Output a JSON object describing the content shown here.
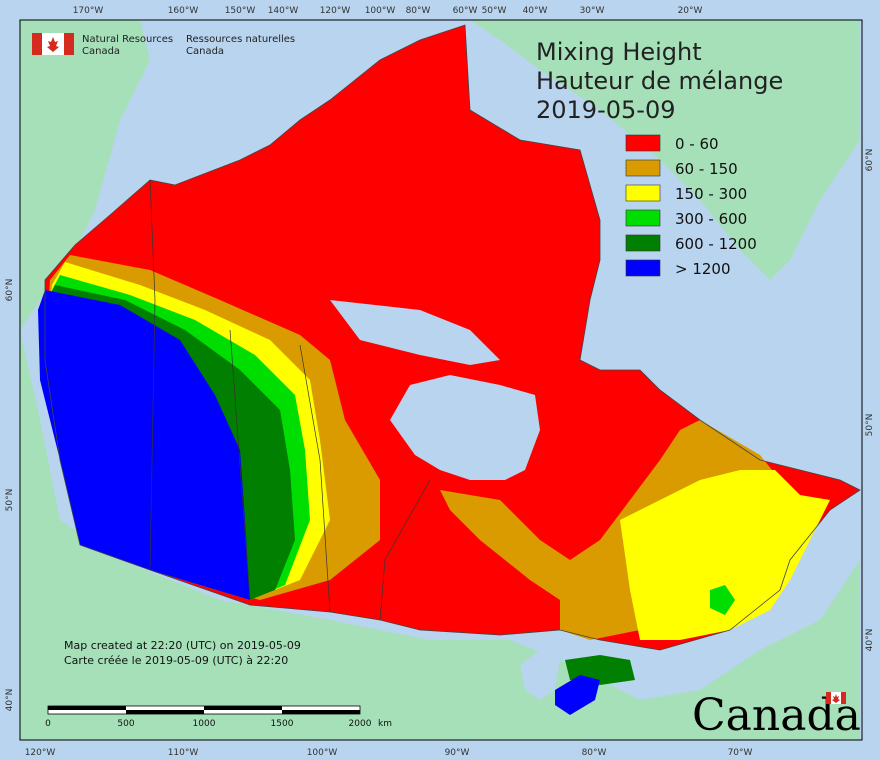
{
  "title": {
    "line1": "Mixing Height",
    "line2": "Hauteur de mélange",
    "date": "2019-05-09"
  },
  "agency": {
    "en_line1": "Natural Resources",
    "en_line2": "Canada",
    "fr_line1": "Ressources naturelles",
    "fr_line2": "Canada",
    "flag_color": "#d52b1e"
  },
  "legend": [
    {
      "label": "0 - 60",
      "color": "#ff0000"
    },
    {
      "label": "60 - 150",
      "color": "#d99b00"
    },
    {
      "label": "150 - 300",
      "color": "#ffff00"
    },
    {
      "label": "300 - 600",
      "color": "#00dd00"
    },
    {
      "label": "600 - 1200",
      "color": "#007f00"
    },
    {
      "label": "> 1200",
      "color": "#0000ff"
    }
  ],
  "created_note": {
    "en": "Map created at 22:20 (UTC) on 2019-05-09",
    "fr": "Carte créée le 2019-05-09 (UTC) à 22:20"
  },
  "scale_bar": {
    "ticks": [
      "0",
      "500",
      "1000",
      "1500",
      "2000"
    ],
    "unit": "km"
  },
  "wordmark": "Canada",
  "graticule": {
    "top": [
      "170°W",
      "160°W",
      "150°W",
      "140°W",
      "120°W",
      "100°W",
      "80°W",
      "60°W",
      "50°W",
      "40°W",
      "30°W",
      "20°W"
    ],
    "bottom": [
      "120°W",
      "110°W",
      "100°W",
      "90°W",
      "80°W",
      "70°W"
    ],
    "left": [
      "60°N",
      "50°N",
      "40°N"
    ],
    "right": [
      "60°N",
      "50°N",
      "40°N"
    ]
  },
  "colors": {
    "ocean": "#b8d4ee",
    "land_other": "#a6e0b8",
    "water_inland": "#b8d4ee"
  }
}
